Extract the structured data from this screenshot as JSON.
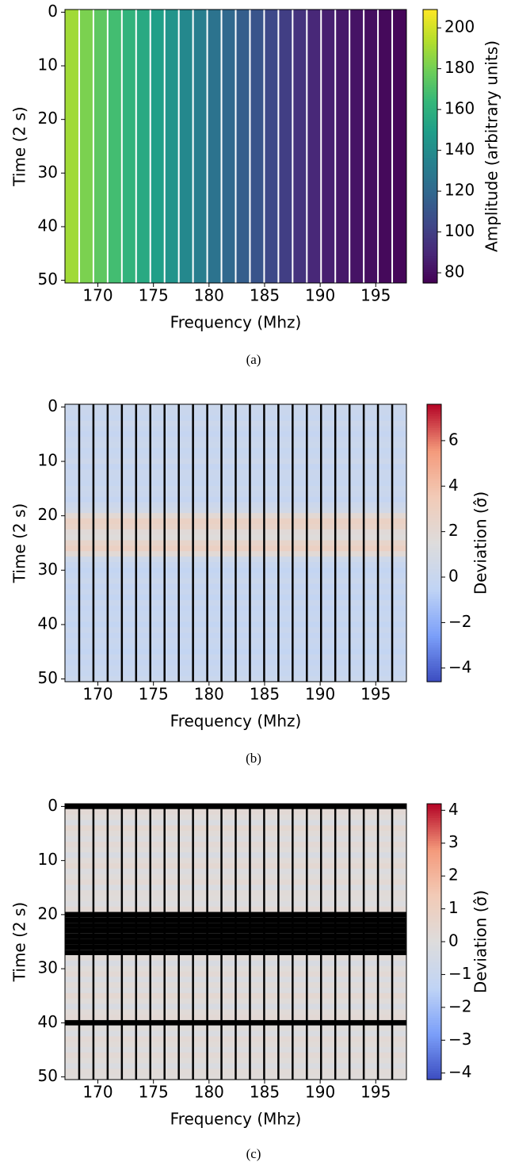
{
  "chart_data": [
    {
      "type": "heatmap",
      "orientation": "columns",
      "caption": "(a)",
      "xlabel": "Frequency (Mhz)",
      "ylabel": "Time (2 s)",
      "colorbar_label": "Amplitude (arbitrary units)",
      "colormap": "viridis",
      "channel_line_color": "#ffffff",
      "x": [
        167.68,
        168.96,
        170.24,
        171.52,
        172.8,
        174.08,
        175.36,
        176.64,
        177.92,
        179.2,
        180.48,
        181.76,
        183.04,
        184.32,
        185.6,
        186.88,
        188.16,
        189.44,
        190.72,
        192,
        193.28,
        194.56,
        195.84,
        197.12
      ],
      "values": [
        190,
        182,
        175,
        168,
        162,
        156,
        150,
        144,
        138,
        132,
        126,
        120,
        115,
        110,
        105,
        100,
        95,
        90,
        87,
        84,
        82,
        80,
        78,
        77
      ],
      "xlim": [
        167.04,
        197.76
      ],
      "ylim": [
        50.5,
        -0.5
      ],
      "xticks": [
        170,
        175,
        180,
        185,
        190,
        195
      ],
      "yticks": [
        0,
        10,
        20,
        30,
        40,
        50
      ],
      "clim": [
        75,
        209
      ],
      "cticks": [
        80,
        100,
        120,
        140,
        160,
        180,
        200
      ]
    },
    {
      "type": "heatmap",
      "orientation": "rows",
      "caption": "(b)",
      "xlabel": "Frequency (Mhz)",
      "ylabel": "Time (2 s)",
      "colorbar_label": "Deviation (σ̂)",
      "colormap": "coolwarm",
      "channel_line_color": "#000000",
      "y": [
        0,
        1,
        2,
        3,
        4,
        5,
        6,
        7,
        8,
        9,
        10,
        11,
        12,
        13,
        14,
        15,
        16,
        17,
        18,
        19,
        20,
        21,
        22,
        23,
        24,
        25,
        26,
        27,
        28,
        29,
        30,
        31,
        32,
        33,
        34,
        35,
        36,
        37,
        38,
        39,
        40,
        41,
        42,
        43,
        44,
        45,
        46,
        47,
        48,
        49,
        50
      ],
      "values": [
        0.2,
        0.1,
        -0.1,
        0.3,
        0,
        -0.2,
        0.1,
        0.2,
        -0.1,
        0,
        0.3,
        -0.2,
        0.1,
        0,
        -0.1,
        0.2,
        0.1,
        -0.2,
        0.3,
        0.6,
        2.0,
        2.8,
        2.6,
        1.8,
        1.6,
        2.5,
        2.9,
        1.9,
        0.4,
        0,
        -0.3,
        -0.1,
        0.2,
        -0.2,
        0,
        -0.3,
        0.1,
        -0.2,
        -0.1,
        0,
        -0.3,
        0.1,
        -0.2,
        0,
        -0.1,
        -0.3,
        0.1,
        -0.2,
        0,
        -0.1,
        0.2
      ],
      "xlim": [
        167.04,
        197.76
      ],
      "ylim": [
        50.5,
        -0.5
      ],
      "xticks": [
        170,
        175,
        180,
        185,
        190,
        195
      ],
      "yticks": [
        0,
        10,
        20,
        30,
        40,
        50
      ],
      "clim": [
        -4.6,
        7.6
      ],
      "cticks": [
        -4,
        -2,
        0,
        2,
        4,
        6
      ]
    },
    {
      "type": "heatmap",
      "orientation": "rows",
      "caption": "(c)",
      "xlabel": "Frequency (Mhz)",
      "ylabel": "Time (2 s)",
      "colorbar_label": "Deviation (σ̂)",
      "colormap": "coolwarm",
      "channel_line_color": "#000000",
      "mask_color": "#000000",
      "y": [
        0,
        1,
        2,
        3,
        4,
        5,
        6,
        7,
        8,
        9,
        10,
        11,
        12,
        13,
        14,
        15,
        16,
        17,
        18,
        19,
        20,
        21,
        22,
        23,
        24,
        25,
        26,
        27,
        28,
        29,
        30,
        31,
        32,
        33,
        34,
        35,
        36,
        37,
        38,
        39,
        40,
        41,
        42,
        43,
        44,
        45,
        46,
        47,
        48,
        49,
        50
      ],
      "values": [
        null,
        0.3,
        0.1,
        -0.2,
        0.4,
        0.2,
        -0.1,
        0.3,
        0.1,
        -0.3,
        0.2,
        0.4,
        -0.1,
        0.1,
        0.3,
        -0.2,
        0.2,
        0.1,
        -0.1,
        0.3,
        null,
        null,
        null,
        null,
        null,
        null,
        null,
        null,
        0.2,
        -0.3,
        0.1,
        0.3,
        -0.2,
        0.2,
        -0.1,
        0.4,
        0.1,
        -0.3,
        0.2,
        0.3,
        null,
        0.1,
        -0.2,
        0.3,
        0.2,
        -0.1,
        0.3,
        0.1,
        -0.2,
        0.2,
        0.1
      ],
      "xlim": [
        167.04,
        197.76
      ],
      "ylim": [
        50.5,
        -0.5
      ],
      "xticks": [
        170,
        175,
        180,
        185,
        190,
        195
      ],
      "yticks": [
        0,
        10,
        20,
        30,
        40,
        50
      ],
      "clim": [
        -4.2,
        4.2
      ],
      "cticks": [
        -4,
        -3,
        -2,
        -1,
        0,
        1,
        2,
        3,
        4
      ]
    }
  ]
}
